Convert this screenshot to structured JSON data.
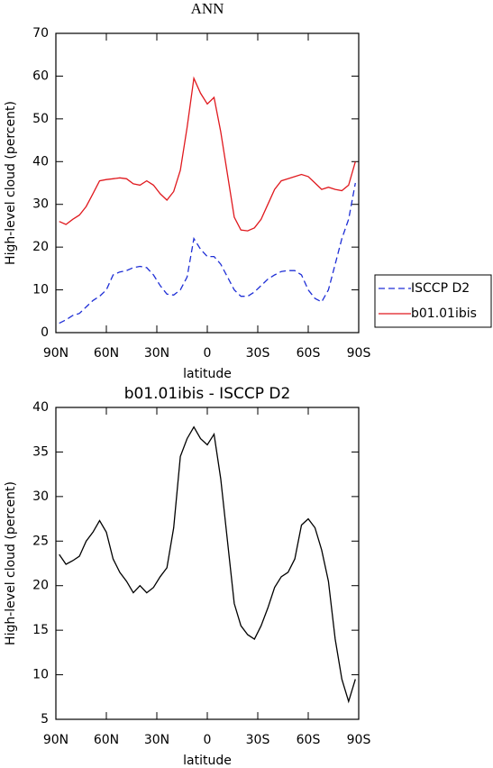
{
  "chart_data": [
    {
      "type": "line",
      "title": "ANN",
      "xlabel": "latitude",
      "ylabel": "High-level cloud (percent)",
      "x": [
        88,
        84,
        80,
        76,
        72,
        68,
        64,
        60,
        56,
        52,
        48,
        44,
        40,
        36,
        32,
        28,
        24,
        20,
        16,
        12,
        8,
        4,
        0,
        -4,
        -8,
        -12,
        -16,
        -20,
        -24,
        -28,
        -32,
        -36,
        -40,
        -44,
        -48,
        -52,
        -56,
        -60,
        -64,
        -68,
        -72,
        -76,
        -80,
        -84,
        -88
      ],
      "series": [
        {
          "name": "ISCCP D2",
          "color": "#1f2fd6",
          "dash": "dashed",
          "values": [
            2.2,
            3,
            4,
            4.5,
            6,
            7.5,
            8.5,
            10,
            13.5,
            14.2,
            14.5,
            15.2,
            15.5,
            15.2,
            13.5,
            11,
            9,
            8.8,
            10,
            13,
            22,
            19.5,
            17.8,
            17.8,
            16,
            13,
            10,
            8.5,
            8.5,
            9.5,
            11,
            12.5,
            13.5,
            14.3,
            14.5,
            14.5,
            13.5,
            10,
            8,
            7.2,
            10,
            16,
            22,
            26.5,
            35
          ]
        },
        {
          "name": "b01.01ibis",
          "color": "#e0191e",
          "dash": "solid",
          "values": [
            26,
            25.3,
            26.5,
            27.5,
            29.5,
            32.5,
            35.5,
            35.8,
            36,
            36.2,
            36,
            34.8,
            34.5,
            35.5,
            34.5,
            32.5,
            31,
            33,
            38,
            48,
            59.5,
            56,
            53.5,
            55,
            47,
            37,
            27,
            24,
            23.8,
            24.5,
            26.5,
            30,
            33.5,
            35.5,
            36,
            36.5,
            37,
            36.5,
            35,
            33.5,
            34,
            33.5,
            33.2,
            34.5,
            40
          ]
        }
      ],
      "xlim": [
        90,
        -90
      ],
      "xticks": [
        {
          "value": 90,
          "label": "90N"
        },
        {
          "value": 60,
          "label": "60N"
        },
        {
          "value": 30,
          "label": "30N"
        },
        0,
        {
          "value": -30,
          "label": "30S"
        },
        {
          "value": -60,
          "label": "60S"
        },
        {
          "value": -90,
          "label": "90S"
        }
      ],
      "ylim": [
        0,
        70
      ],
      "yticks": [
        0,
        10,
        20,
        30,
        40,
        50,
        60,
        70
      ],
      "legend": "right"
    },
    {
      "type": "line",
      "title": "b01.01ibis - ISCCP D2",
      "xlabel": "latitude",
      "ylabel": "High-level cloud (percent)",
      "x": [
        88,
        84,
        80,
        76,
        72,
        68,
        64,
        60,
        56,
        52,
        48,
        44,
        40,
        36,
        32,
        28,
        24,
        20,
        16,
        12,
        8,
        4,
        0,
        -4,
        -8,
        -12,
        -16,
        -20,
        -24,
        -28,
        -32,
        -36,
        -40,
        -44,
        -48,
        -52,
        -56,
        -60,
        -64,
        -68,
        -72,
        -76,
        -80,
        -84,
        -88
      ],
      "series": [
        {
          "color": "#000000",
          "dash": "solid",
          "values": [
            23.5,
            22.4,
            22.8,
            23.3,
            25,
            26,
            27.3,
            26,
            23,
            21.5,
            20.5,
            19.2,
            20,
            19.2,
            19.8,
            21,
            22,
            26.5,
            34.5,
            36.5,
            37.8,
            36.5,
            35.8,
            37,
            32,
            25,
            18,
            15.5,
            14.5,
            14,
            15.5,
            17.5,
            19.8,
            21,
            21.5,
            23,
            26.8,
            27.5,
            26.5,
            24,
            20.5,
            14,
            9.5,
            7,
            9.5
          ]
        }
      ],
      "xlim": [
        90,
        -90
      ],
      "xticks": [
        {
          "value": 90,
          "label": "90N"
        },
        {
          "value": 60,
          "label": "60N"
        },
        {
          "value": 30,
          "label": "30N"
        },
        0,
        {
          "value": -30,
          "label": "30S"
        },
        {
          "value": -60,
          "label": "60S"
        },
        {
          "value": -90,
          "label": "90S"
        }
      ],
      "ylim": [
        5,
        40
      ],
      "yticks": [
        5,
        10,
        15,
        20,
        25,
        30,
        35,
        40
      ]
    }
  ]
}
